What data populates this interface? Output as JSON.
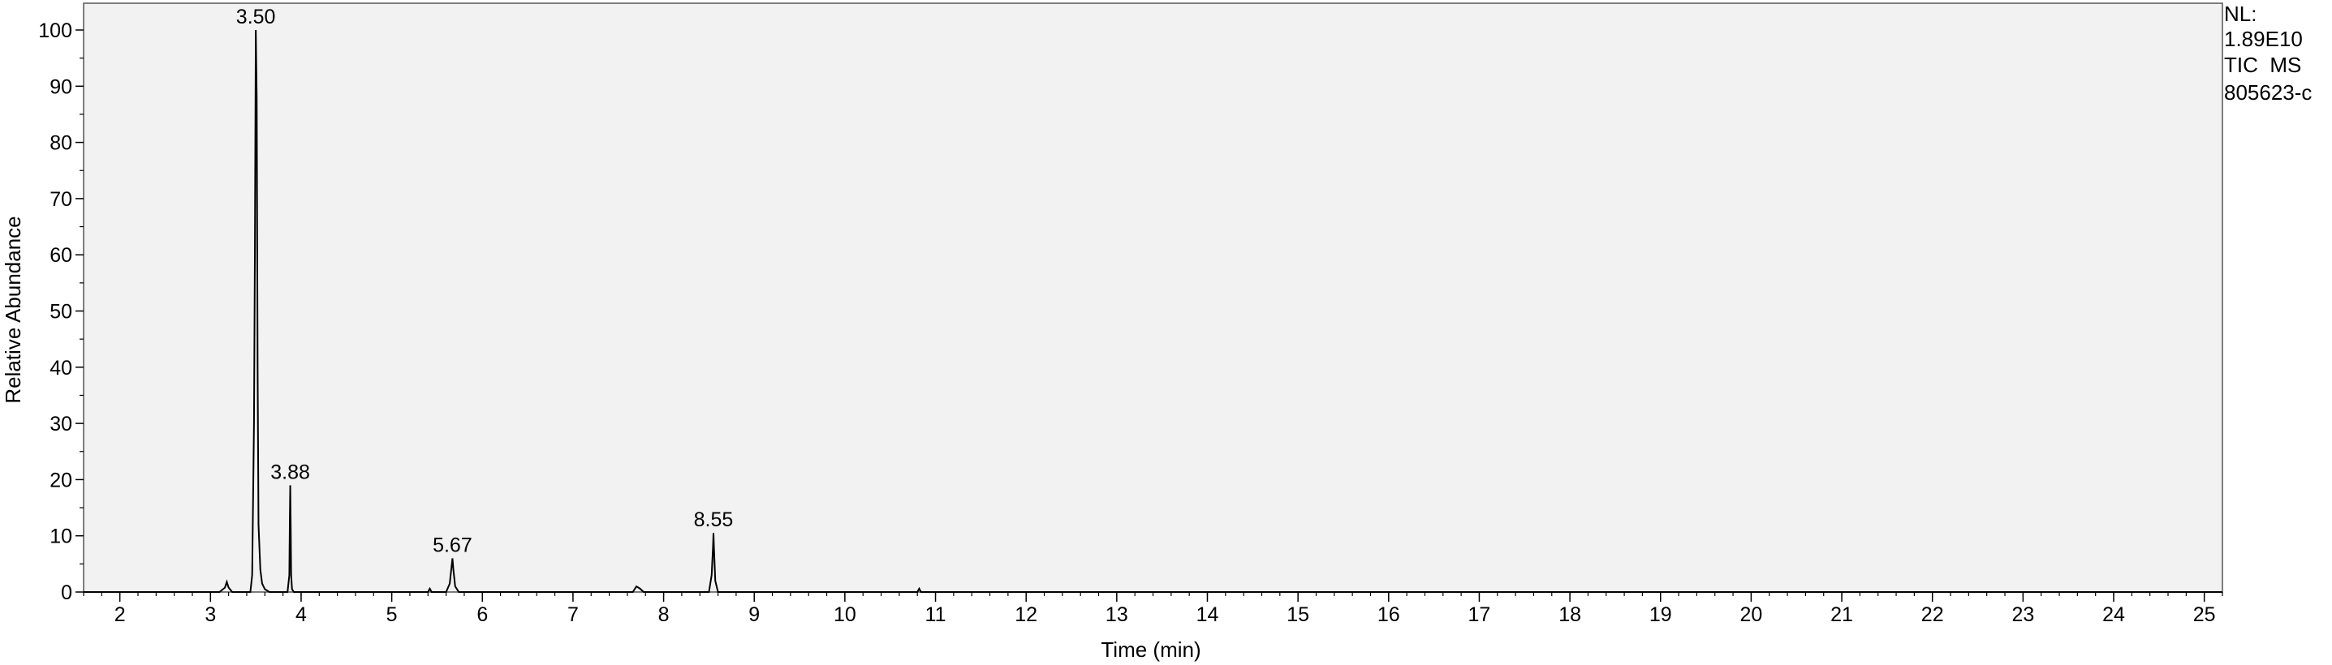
{
  "chart_data": {
    "type": "line",
    "title": "",
    "xlabel": "Time (min)",
    "ylabel": "Relative Abundance",
    "xlim": [
      1.6,
      25.2
    ],
    "ylim": [
      0,
      100
    ],
    "x_ticks": [
      "2",
      "3",
      "4",
      "5",
      "6",
      "7",
      "8",
      "9",
      "10",
      "11",
      "12",
      "13",
      "14",
      "15",
      "16",
      "17",
      "18",
      "19",
      "20",
      "21",
      "22",
      "23",
      "24",
      "25"
    ],
    "y_ticks": [
      "0",
      "10",
      "20",
      "30",
      "40",
      "50",
      "60",
      "70",
      "80",
      "90",
      "100"
    ],
    "grid": false,
    "legend": "none",
    "colors": {
      "trace": "#000000",
      "plot_background": "#f2f2f2"
    },
    "info": {
      "nl_label": "NL:",
      "nl_value": "1.89E10",
      "scan": "TIC  MS",
      "sample": "805623-c"
    },
    "peak_labels": [
      {
        "x": 3.5,
        "y": 100,
        "text": "3.50"
      },
      {
        "x": 3.88,
        "y": 19,
        "text": "3.88"
      },
      {
        "x": 5.67,
        "y": 6,
        "text": "5.67"
      },
      {
        "x": 8.55,
        "y": 10.5,
        "text": "8.55"
      }
    ],
    "series": [
      {
        "x": [
          1.6,
          3.1,
          3.16,
          3.18,
          3.2,
          3.24,
          3.44,
          3.46,
          3.48,
          3.49,
          3.5,
          3.51,
          3.52,
          3.53,
          3.55,
          3.57,
          3.6,
          3.65,
          3.85,
          3.87,
          3.875,
          3.88,
          3.885,
          3.89,
          3.9,
          3.92,
          5.4,
          5.42,
          5.44,
          5.6,
          5.64,
          5.66,
          5.67,
          5.68,
          5.7,
          5.74,
          7.66,
          7.7,
          7.74,
          7.78,
          8.5,
          8.53,
          8.545,
          8.55,
          8.555,
          8.57,
          8.6,
          10.8,
          10.82,
          10.84,
          25.2
        ],
        "y": [
          0,
          0,
          0.8,
          1.8,
          0.8,
          0,
          0,
          3,
          30,
          60,
          100,
          88,
          40,
          12,
          4,
          1.5,
          0.5,
          0,
          0,
          3,
          12,
          19,
          12,
          3,
          0.5,
          0,
          0,
          0.6,
          0,
          0,
          1.5,
          4.5,
          6,
          4,
          1,
          0,
          0,
          1,
          0.6,
          0,
          0,
          3,
          8,
          10.5,
          8,
          2,
          0,
          0,
          0.6,
          0,
          0
        ]
      }
    ]
  }
}
